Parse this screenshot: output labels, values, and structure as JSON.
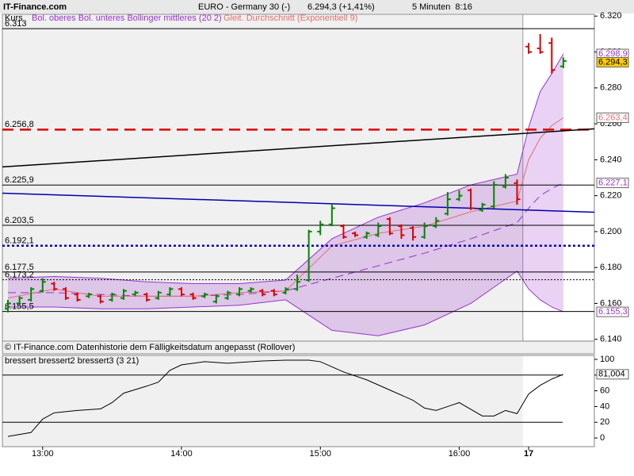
{
  "header": {
    "brand": "IT-Finance.com",
    "title": "EURO - Germany 30 (-)",
    "quote": "6.294,3 (+1,41%)",
    "interval": "5 Minuten  8:16"
  },
  "footer": "© IT-Finance.com Datenhistorie dem Fälligkeitsdatum angepasst (Rollover)",
  "chart_data": [
    {
      "type": "ohlc",
      "xlim": [
        -0.48,
        50.68
      ],
      "ylim": [
        6.139,
        6.321
      ],
      "yticks": [
        {
          "value": 6.32,
          "label": "6.320"
        },
        {
          "value": 6.3,
          "label": "6.300"
        },
        {
          "value": 6.28,
          "label": "6.280"
        },
        {
          "value": 6.26,
          "label": "6.260"
        },
        {
          "value": 6.24,
          "label": "6.240"
        },
        {
          "value": 6.22,
          "label": "6.220"
        },
        {
          "value": 6.2,
          "label": "6.200"
        },
        {
          "value": 6.18,
          "label": "6.180"
        },
        {
          "value": 6.16,
          "label": "6.160"
        },
        {
          "value": 6.14,
          "label": "6.140"
        }
      ],
      "series": [
        {
          "name": "Kurs",
          "up_color": "#008800",
          "down_color": "#dd0000",
          "x": [
            0,
            1,
            2,
            3,
            4,
            5,
            6,
            7,
            8,
            9,
            10,
            11,
            12,
            13,
            14,
            15,
            16,
            17,
            18,
            19,
            20,
            21,
            22,
            23,
            24,
            25,
            26,
            27,
            28,
            29,
            30,
            31,
            32,
            33,
            34,
            35,
            36,
            37,
            38,
            39,
            40,
            41,
            42,
            43,
            44,
            45,
            46,
            47,
            48
          ],
          "open": [
            6.157,
            6.16,
            6.162,
            6.167,
            6.171,
            6.168,
            6.165,
            6.164,
            6.164,
            6.162,
            6.163,
            6.165,
            6.165,
            6.163,
            6.165,
            6.168,
            6.165,
            6.164,
            6.161,
            6.163,
            6.165,
            6.167,
            6.167,
            6.167,
            6.166,
            6.168,
            6.173,
            6.2,
            6.204,
            6.203,
            6.199,
            6.197,
            6.198,
            6.207,
            6.203,
            6.202,
            6.197,
            6.203,
            6.21,
            6.218,
            6.223,
            6.212,
            6.214,
            6.225,
            6.227,
            6.303,
            6.302,
            6.305,
            6.292
          ],
          "high": [
            6.162,
            6.164,
            6.169,
            6.174,
            6.172,
            6.169,
            6.166,
            6.166,
            6.165,
            6.166,
            6.168,
            6.167,
            6.166,
            6.167,
            6.169,
            6.169,
            6.166,
            6.166,
            6.165,
            6.167,
            6.169,
            6.169,
            6.168,
            6.168,
            6.169,
            6.176,
            6.201,
            6.206,
            6.215,
            6.204,
            6.2,
            6.2,
            6.205,
            6.208,
            6.204,
            6.203,
            6.205,
            6.208,
            6.222,
            6.223,
            6.224,
            6.216,
            6.228,
            6.232,
            6.229,
            6.305,
            6.31,
            6.308,
            6.297
          ],
          "low": [
            6.155,
            6.159,
            6.161,
            6.166,
            6.167,
            6.162,
            6.161,
            6.163,
            6.16,
            6.161,
            6.162,
            6.164,
            6.161,
            6.162,
            6.164,
            6.164,
            6.162,
            6.163,
            6.16,
            6.162,
            6.164,
            6.166,
            6.164,
            6.164,
            6.165,
            6.167,
            6.172,
            6.198,
            6.203,
            6.196,
            6.197,
            6.196,
            6.197,
            6.198,
            6.196,
            6.195,
            6.196,
            6.202,
            6.209,
            6.217,
            6.212,
            6.211,
            6.213,
            6.224,
            6.215,
            6.299,
            6.299,
            6.288,
            6.291
          ],
          "close": [
            6.16,
            6.163,
            6.168,
            6.172,
            6.168,
            6.163,
            6.162,
            6.165,
            6.161,
            6.165,
            6.167,
            6.166,
            6.162,
            6.166,
            6.168,
            6.165,
            6.163,
            6.165,
            6.164,
            6.166,
            6.168,
            6.168,
            6.165,
            6.165,
            6.168,
            6.172,
            6.2,
            6.204,
            6.213,
            6.197,
            6.198,
            6.199,
            6.203,
            6.199,
            6.198,
            6.197,
            6.203,
            6.206,
            6.218,
            6.22,
            6.213,
            6.215,
            6.226,
            6.23,
            6.218,
            6.3,
            6.3,
            6.29,
            6.295
          ]
        }
      ],
      "bands": {
        "name": "Bol. oberes Bol. unteres Bollinger mittleres (20 2)",
        "color": "#9933cc",
        "x": [
          0,
          4,
          8,
          12,
          16,
          20,
          24,
          28,
          32,
          36,
          40,
          44,
          45,
          46,
          47,
          48
        ],
        "upper": [
          6.174,
          6.175,
          6.174,
          6.172,
          6.171,
          6.171,
          6.173,
          6.196,
          6.208,
          6.216,
          6.226,
          6.232,
          6.258,
          6.278,
          6.288,
          6.2989
        ],
        "lower": [
          6.158,
          6.158,
          6.157,
          6.157,
          6.158,
          6.159,
          6.162,
          6.145,
          6.142,
          6.148,
          6.16,
          6.178,
          6.168,
          6.162,
          6.158,
          6.1553
        ],
        "middle": [
          6.166,
          6.166,
          6.165,
          6.164,
          6.164,
          6.165,
          6.167,
          6.174,
          6.181,
          6.188,
          6.196,
          6.205,
          6.213,
          6.22,
          6.224,
          6.2271
        ]
      },
      "ema": {
        "name": "Gleit. Durchschnitt (Exponentiell 9)",
        "color": "#e07070",
        "x": [
          0,
          4,
          8,
          12,
          16,
          20,
          24,
          28,
          32,
          36,
          40,
          44,
          45,
          46,
          47,
          48
        ],
        "values": [
          6.163,
          6.168,
          6.164,
          6.164,
          6.164,
          6.166,
          6.167,
          6.192,
          6.199,
          6.203,
          6.211,
          6.217,
          6.24,
          6.252,
          6.259,
          6.2634
        ]
      },
      "levels": [
        {
          "value": 6.313,
          "label": "6.313",
          "color": "#000000",
          "style": "solid"
        },
        {
          "value": 6.2568,
          "label": "6.256,8",
          "color": "#dd0000",
          "style": "dashed"
        },
        {
          "value": 6.2259,
          "label": "6.225,9",
          "color": "#000000",
          "style": "solid"
        },
        {
          "value": 6.2035,
          "label": "6.203,5",
          "color": "#000000",
          "style": "solid"
        },
        {
          "value": 6.1921,
          "label": "6.192,1",
          "color": "#0000cc",
          "style": "dotted"
        },
        {
          "value": 6.1775,
          "label": "6.177,5",
          "color": "#000000",
          "style": "solid"
        },
        {
          "value": 6.1732,
          "label": "6.173,2",
          "color": "#000000",
          "style": "thin"
        },
        {
          "value": 6.1555,
          "label": "6.155,5",
          "color": "#000000",
          "style": "solid"
        }
      ],
      "trend_lines": [
        {
          "color": "#000000",
          "start": 6.236,
          "end": 6.2572
        },
        {
          "color": "#0000aa",
          "start": 6.2214,
          "end": 6.2108
        }
      ],
      "value_badges": [
        {
          "value": 6.2989,
          "label": "6.298,9",
          "color": "#9933cc",
          "background": "#ffffff"
        },
        {
          "value": 6.2943,
          "label": "6.294,3",
          "color": "#000000",
          "background": "#ffcc00"
        },
        {
          "value": 6.2634,
          "label": "6.263,4",
          "color": "#e07070",
          "background": "#ffffff"
        },
        {
          "value": 6.2271,
          "label": "6.227,1",
          "color": "#9933cc",
          "background": "#ffffff"
        },
        {
          "value": 6.1553,
          "label": "6.155,3",
          "color": "#9933cc",
          "background": "#ffffff"
        }
      ]
    },
    {
      "type": "line",
      "xlim": [
        -0.48,
        50.68
      ],
      "ylim": [
        -11,
        105
      ],
      "xticks": [
        {
          "value": 3,
          "label": "13:00"
        },
        {
          "value": 15,
          "label": "14:00"
        },
        {
          "value": 27,
          "label": "15:00"
        },
        {
          "value": 39,
          "label": "16:00"
        },
        {
          "value": 45,
          "label": "17"
        }
      ],
      "yticks": [
        0,
        20,
        40,
        60,
        80,
        100
      ],
      "levels": [
        80,
        20
      ],
      "series": [
        {
          "name": "bressert bressert2 bressert3 (3 21)",
          "color": "#000000",
          "x": [
            0,
            2,
            3,
            4,
            6,
            8,
            9,
            10,
            12,
            13,
            14,
            15,
            17,
            19,
            20,
            22,
            24,
            26,
            27,
            29,
            31,
            33,
            35,
            36,
            37,
            38,
            39,
            41,
            42,
            43,
            44,
            45,
            46,
            47,
            48
          ],
          "values": [
            2,
            7,
            24,
            32,
            35,
            37,
            45,
            57,
            66,
            71,
            86,
            93,
            97,
            95,
            96,
            98,
            99,
            99,
            97,
            84,
            74,
            61,
            48,
            38,
            35,
            40,
            45,
            28,
            28,
            35,
            31,
            56,
            67,
            75,
            81
          ]
        }
      ],
      "value_badges": [
        {
          "value": 81.004,
          "label": "81,004",
          "color": "#000000",
          "background": "#ffffff"
        }
      ]
    }
  ]
}
